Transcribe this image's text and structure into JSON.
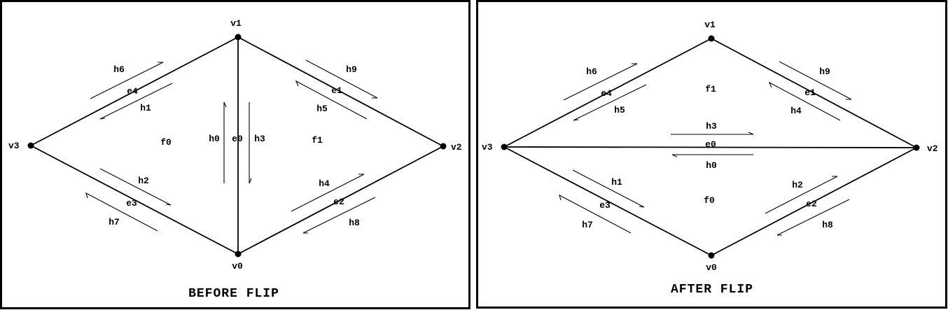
{
  "before": {
    "title": "BEFORE FLIP",
    "vertices": {
      "v0": "v0",
      "v1": "v1",
      "v2": "v2",
      "v3": "v3"
    },
    "edges": {
      "e0": "e0",
      "e1": "e1",
      "e2": "e2",
      "e3": "e3",
      "e4": "e4"
    },
    "faces": {
      "f0": "f0",
      "f1": "f1"
    },
    "halfedges": {
      "h0": "h0",
      "h1": "h1",
      "h2": "h2",
      "h3": "h3",
      "h4": "h4",
      "h5": "h5",
      "h6": "h6",
      "h7": "h7",
      "h8": "h8",
      "h9": "h9"
    }
  },
  "after": {
    "title": "AFTER FLIP",
    "vertices": {
      "v0": "v0",
      "v1": "v1",
      "v2": "v2",
      "v3": "v3"
    },
    "edges": {
      "e0": "e0",
      "e1": "e1",
      "e2": "e2",
      "e3": "e3",
      "e4": "e4"
    },
    "faces": {
      "f0": "f0",
      "f1": "f1"
    },
    "halfedges": {
      "h0": "h0",
      "h1": "h1",
      "h2": "h2",
      "h3": "h3",
      "h4": "h4",
      "h5": "h5",
      "h6": "h6",
      "h7": "h7",
      "h8": "h8",
      "h9": "h9"
    }
  }
}
